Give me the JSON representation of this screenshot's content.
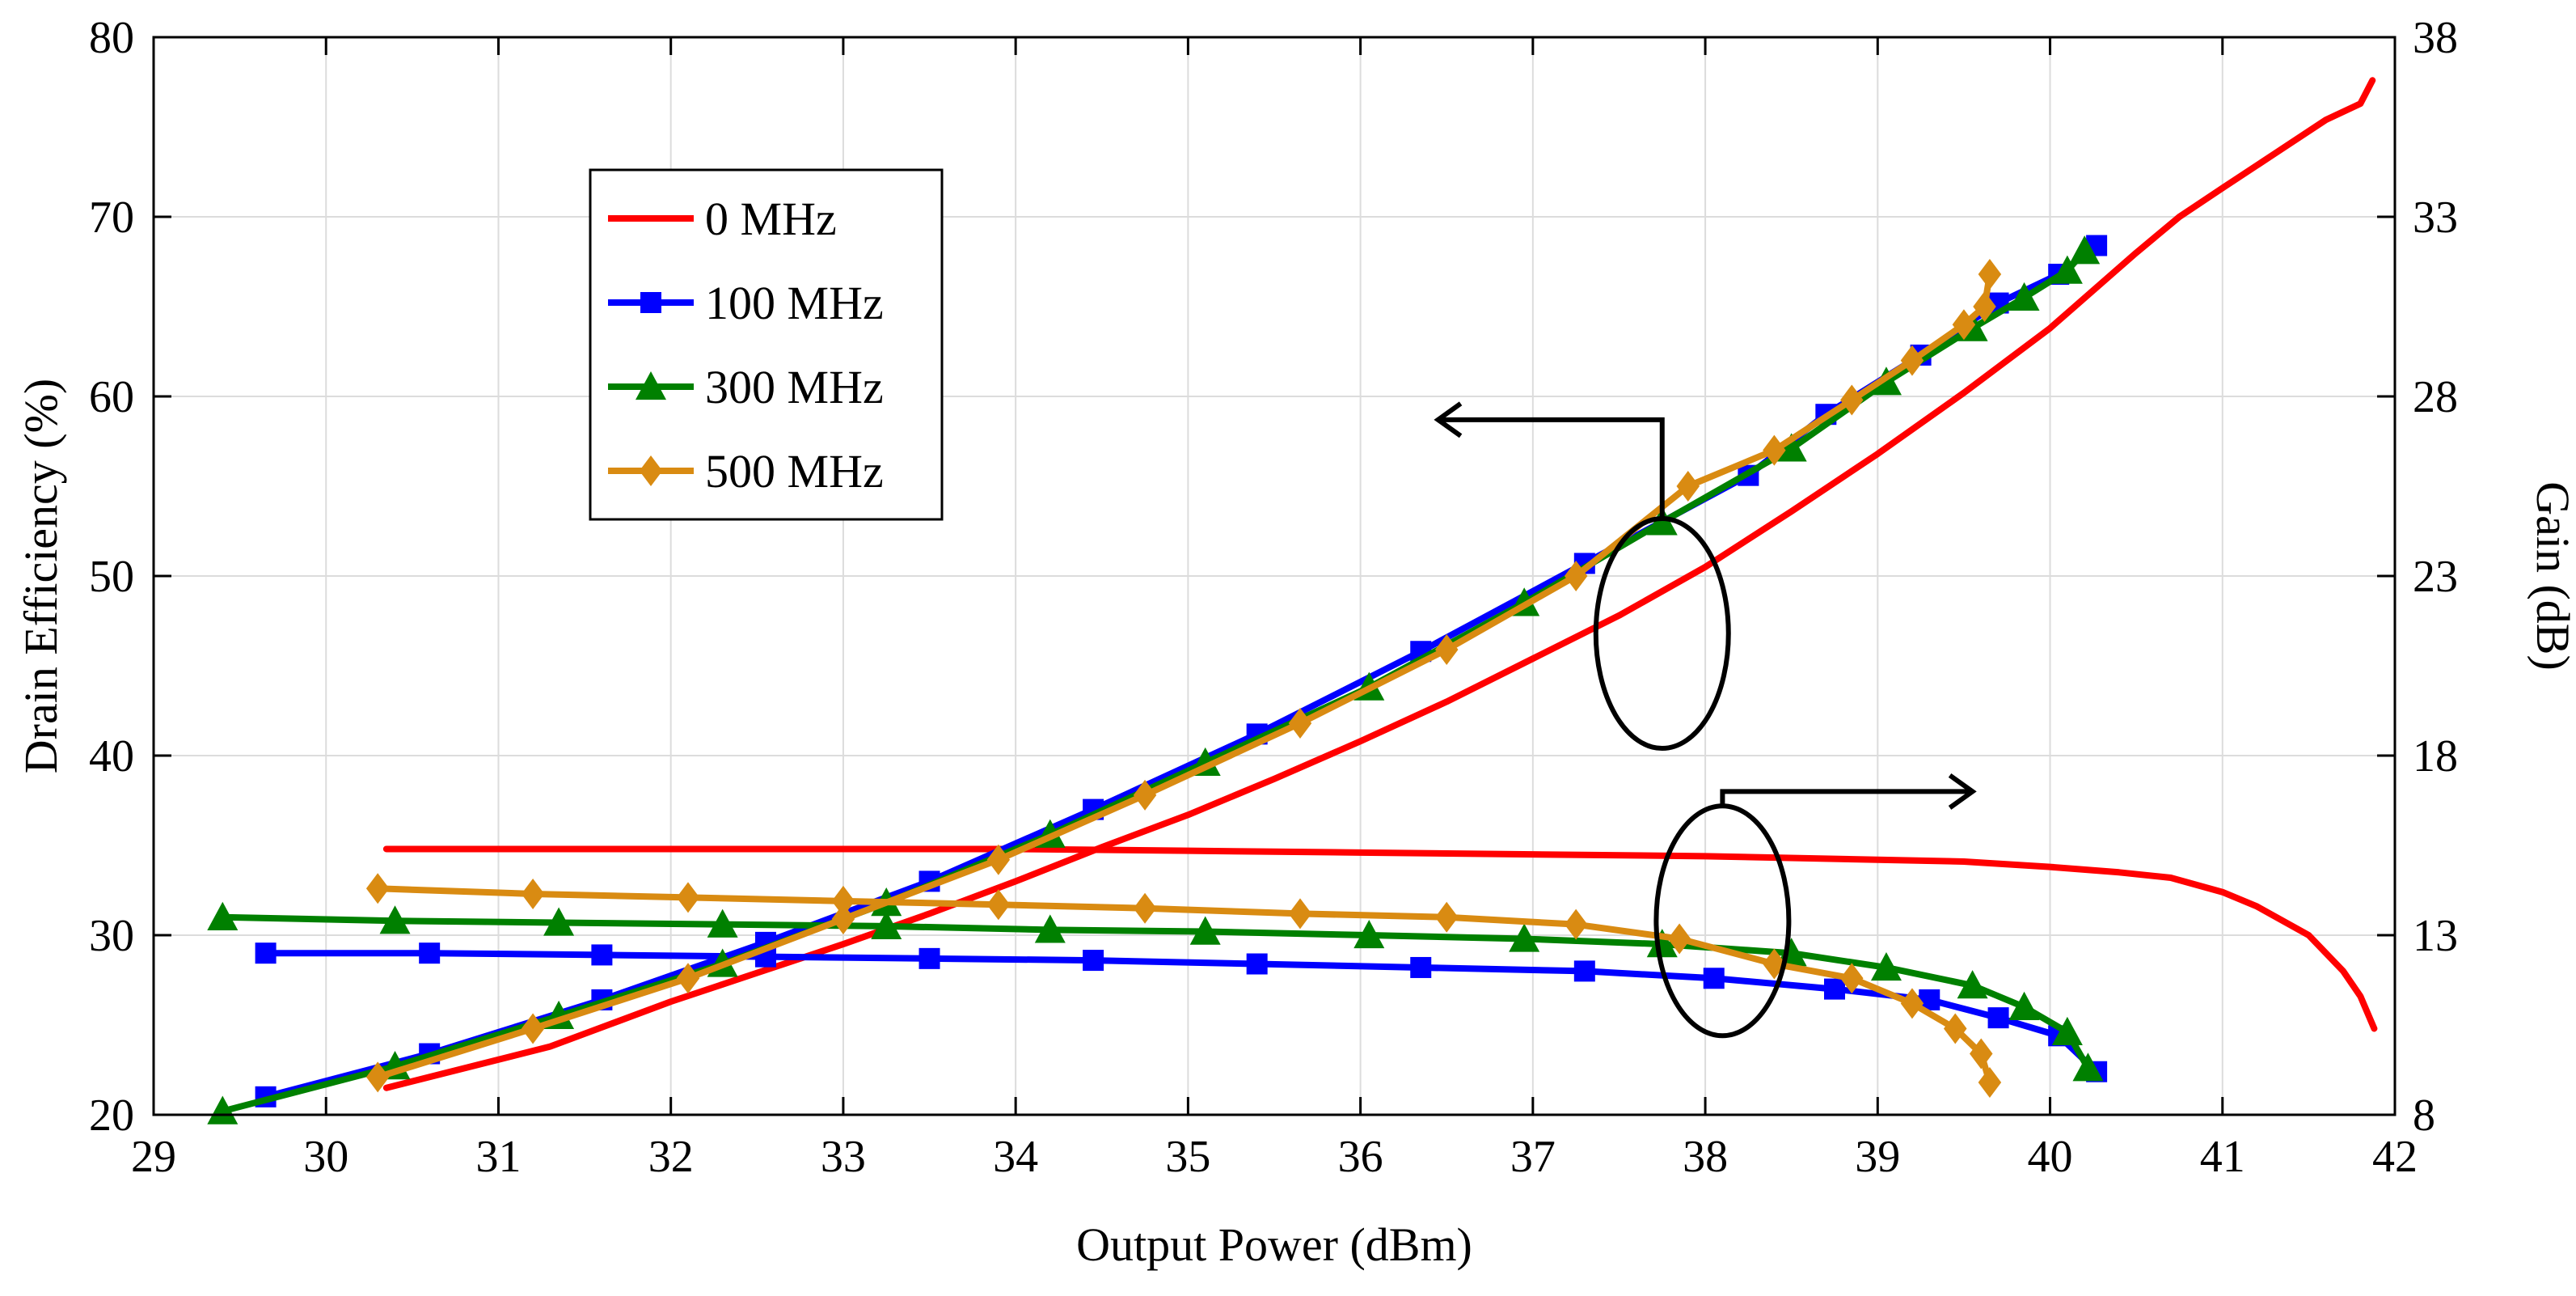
{
  "chart_data": {
    "type": "line",
    "title": "",
    "xlabel": "Output Power (dBm)",
    "ylabel": "Drain Efficiency (%)",
    "y2label": "Gain (dB)",
    "xlim": [
      29,
      42
    ],
    "ylim": [
      20,
      80
    ],
    "y2lim": [
      8,
      38
    ],
    "xticks": [
      "29",
      "30",
      "31",
      "32",
      "33",
      "34",
      "35",
      "36",
      "37",
      "38",
      "39",
      "40",
      "41",
      "42"
    ],
    "yticks": [
      "20",
      "30",
      "40",
      "50",
      "60",
      "70",
      "80"
    ],
    "y2ticks": [
      "8",
      "13",
      "18",
      "23",
      "28",
      "33",
      "38"
    ],
    "grid": true,
    "legend_position": "top-left",
    "series": [
      {
        "name": "0 MHz",
        "color": "#ff0000",
        "marker": "none",
        "efficiency": {
          "x": [
            30.35,
            31.3,
            32.0,
            32.5,
            33.0,
            33.5,
            34.0,
            34.5,
            35.0,
            35.5,
            36.0,
            36.5,
            37.0,
            37.5,
            38.0,
            38.5,
            39.0,
            39.5,
            40.0,
            40.5,
            40.75,
            41.0,
            41.3,
            41.6,
            41.8,
            41.87
          ],
          "y": [
            21.5,
            23.8,
            26.3,
            27.9,
            29.5,
            31.2,
            33.0,
            34.9,
            36.7,
            38.7,
            40.8,
            43.0,
            45.4,
            47.8,
            50.5,
            53.6,
            56.8,
            60.2,
            63.8,
            68.0,
            70.0,
            71.6,
            73.5,
            75.4,
            76.3,
            77.6
          ]
        },
        "gain": {
          "x": [
            30.35,
            31.0,
            32.0,
            33.0,
            34.0,
            35.0,
            36.0,
            37.0,
            38.0,
            39.0,
            39.5,
            40.0,
            40.4,
            40.7,
            41.0,
            41.2,
            41.5,
            41.7,
            41.8,
            41.88
          ],
          "y": [
            15.4,
            15.4,
            15.4,
            15.4,
            15.4,
            15.35,
            15.3,
            15.25,
            15.2,
            15.1,
            15.05,
            14.9,
            14.75,
            14.6,
            14.2,
            13.8,
            13.0,
            12.0,
            11.3,
            10.4
          ]
        }
      },
      {
        "name": "100 MHz",
        "color": "#0000ff",
        "marker": "square",
        "efficiency": {
          "x": [
            29.65,
            30.6,
            31.6,
            32.55,
            33.5,
            34.45,
            35.4,
            36.35,
            37.3,
            38.25,
            38.7,
            39.25,
            39.7,
            40.05,
            40.27
          ],
          "y": [
            21.0,
            23.4,
            26.4,
            29.6,
            33.0,
            37.0,
            41.2,
            45.8,
            50.7,
            55.6,
            59.0,
            62.3,
            65.2,
            66.8,
            68.4
          ]
        },
        "gain": {
          "x": [
            29.65,
            30.6,
            31.6,
            32.55,
            33.5,
            34.45,
            35.4,
            36.35,
            37.3,
            38.05,
            38.75,
            39.3,
            39.7,
            40.05,
            40.27
          ],
          "y": [
            12.5,
            12.5,
            12.45,
            12.4,
            12.35,
            12.3,
            12.2,
            12.1,
            12.0,
            11.8,
            11.5,
            11.2,
            10.7,
            10.2,
            9.2
          ]
        }
      },
      {
        "name": "300 MHz",
        "color": "#008000",
        "marker": "triangle",
        "efficiency": {
          "x": [
            29.4,
            30.4,
            31.35,
            32.3,
            33.25,
            34.2,
            35.1,
            36.05,
            36.95,
            37.75,
            38.5,
            39.05,
            39.55,
            39.85,
            40.1,
            40.2
          ],
          "y": [
            20.2,
            22.7,
            25.5,
            28.4,
            31.8,
            35.6,
            39.6,
            43.8,
            48.5,
            53.0,
            57.1,
            60.8,
            63.8,
            65.5,
            67.0,
            68.1
          ]
        },
        "gain": {
          "x": [
            29.4,
            30.4,
            31.35,
            32.3,
            33.25,
            34.2,
            35.1,
            36.05,
            36.95,
            37.75,
            38.5,
            39.05,
            39.55,
            39.85,
            40.1,
            40.22
          ],
          "y": [
            13.5,
            13.4,
            13.35,
            13.3,
            13.25,
            13.15,
            13.1,
            13.0,
            12.9,
            12.75,
            12.5,
            12.1,
            11.6,
            11.0,
            10.3,
            9.3
          ]
        }
      },
      {
        "name": "500 MHz",
        "color": "#d98b12",
        "marker": "diamond",
        "efficiency": {
          "x": [
            30.3,
            31.2,
            32.1,
            33.0,
            33.9,
            34.75,
            35.65,
            36.5,
            37.25,
            37.9,
            38.4,
            38.85,
            39.2,
            39.5,
            39.62,
            39.65
          ],
          "y": [
            22.1,
            24.8,
            27.6,
            30.9,
            34.2,
            37.8,
            41.8,
            45.9,
            50.0,
            55.0,
            57.0,
            59.8,
            62.0,
            64.0,
            65.0,
            66.8
          ]
        },
        "gain": {
          "x": [
            30.3,
            31.2,
            32.1,
            33.0,
            33.9,
            34.75,
            35.65,
            36.5,
            37.25,
            37.85,
            38.4,
            38.85,
            39.2,
            39.45,
            39.6,
            39.65
          ],
          "y": [
            14.3,
            14.15,
            14.05,
            13.95,
            13.85,
            13.75,
            13.6,
            13.5,
            13.3,
            12.9,
            12.2,
            11.8,
            11.1,
            10.4,
            9.7,
            8.9
          ]
        }
      }
    ],
    "annotations": [
      {
        "type": "ellipse-arrow",
        "points_to": "left axis",
        "ellipse_center": [
          37.75,
          46.8
        ],
        "arrow_tip": [
          36.45,
          58.7
        ]
      },
      {
        "type": "ellipse-arrow",
        "points_to": "right axis",
        "ellipse_center": [
          38.1,
          30.8
        ],
        "arrow_tip": [
          39.55,
          38.0
        ]
      }
    ]
  }
}
